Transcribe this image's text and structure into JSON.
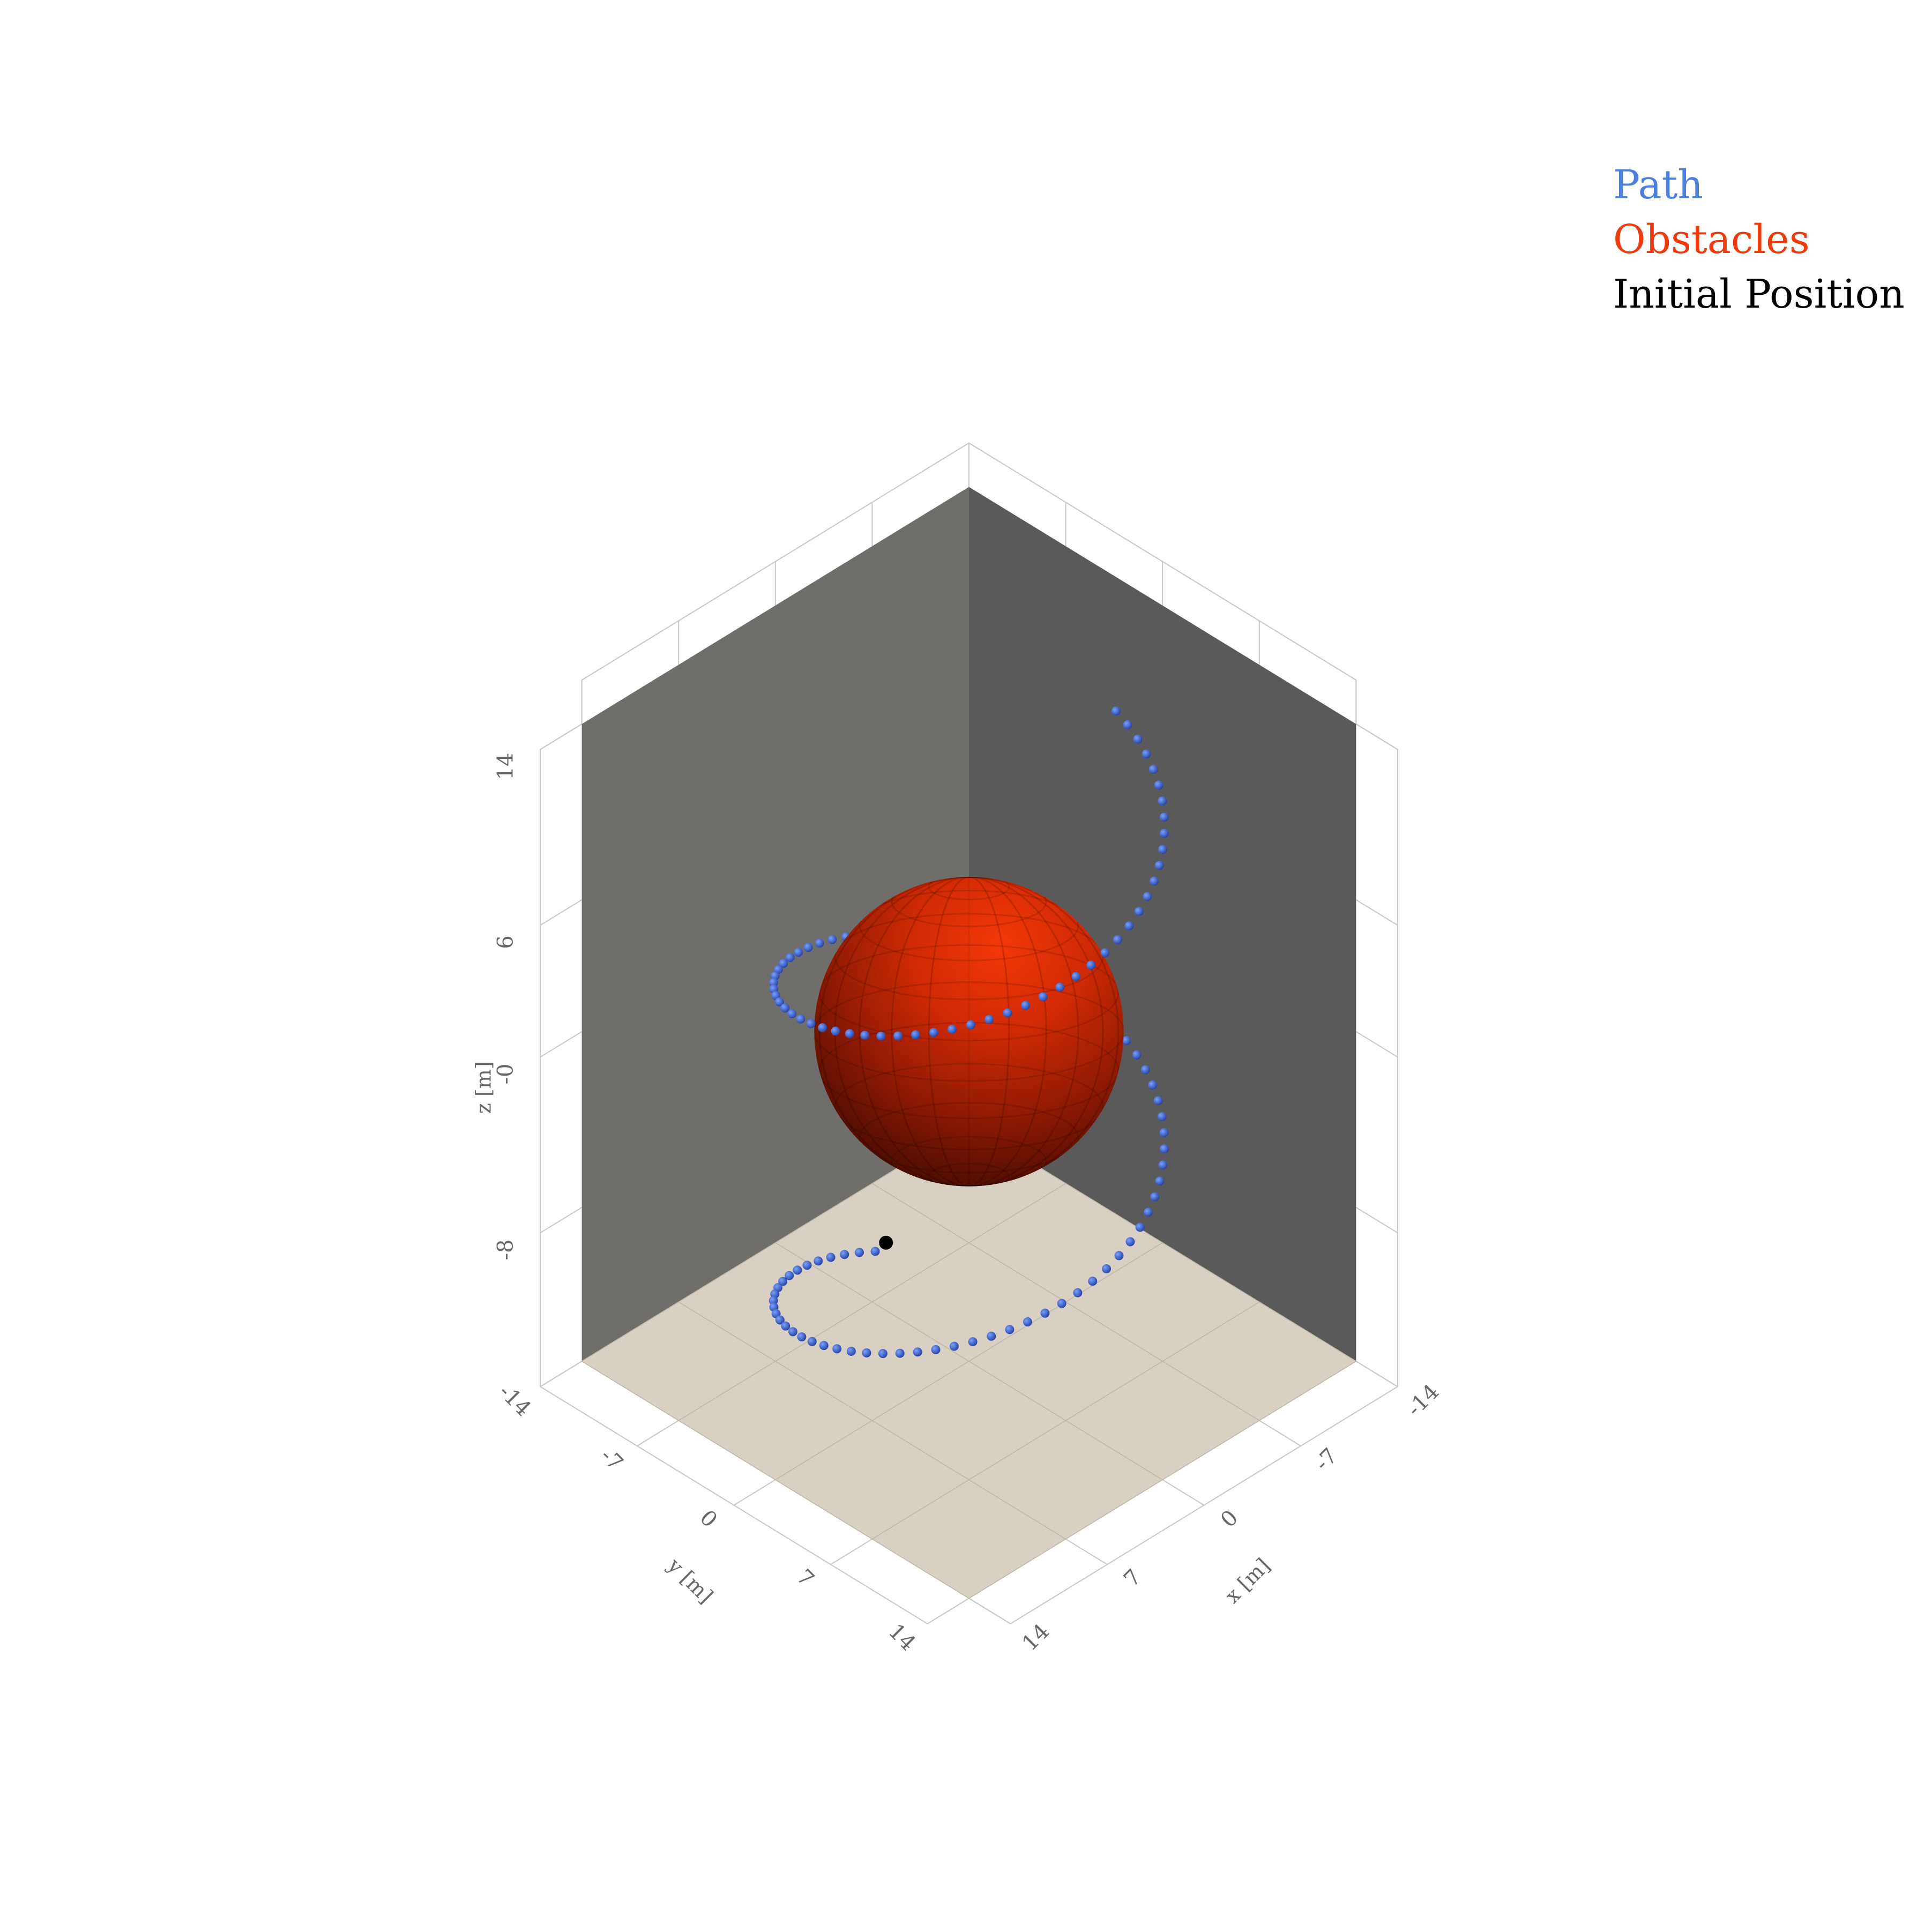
{
  "chart_data": {
    "type": "scatter",
    "dimensions": "3d",
    "axes": {
      "x": {
        "label": "x [m]",
        "range": [
          -14,
          14
        ],
        "ticks": [
          "-14",
          "-7",
          "0",
          "7",
          "14"
        ]
      },
      "y": {
        "label": "y [m]",
        "range": [
          -14,
          14
        ],
        "ticks": [
          "-14",
          "-7",
          "0",
          "7",
          "14"
        ]
      },
      "z": {
        "label": "z [m]",
        "range": [
          -15,
          14
        ],
        "ticks": [
          "14",
          "6",
          "-0",
          "-8"
        ]
      }
    },
    "grid": true,
    "legend": {
      "placement": "top-right",
      "entries": [
        {
          "name": "Path",
          "color": "#4a7fe0"
        },
        {
          "name": "Obstacles",
          "color": "#ee3a0c"
        },
        {
          "name": "Initial Position",
          "color": "#000000"
        }
      ]
    },
    "series": [
      {
        "name": "Path",
        "kind": "markers",
        "color": "#3b5fc9",
        "path": {
          "shape": "helix",
          "center": [
            0,
            0
          ],
          "radius": 10,
          "z_start": -15,
          "z_end": 11,
          "turns": 1.8,
          "points": 120
        }
      },
      {
        "name": "Obstacles",
        "kind": "sphere",
        "color": "#ee3a0c",
        "center": [
          0,
          0,
          0
        ],
        "radius": 8
      },
      {
        "name": "Initial Position",
        "kind": "marker",
        "color": "#000000",
        "point": [
          -4,
          -10,
          -15
        ]
      }
    ],
    "colors": {
      "back_wall_left": "#706e6b",
      "back_wall_right": "#5a5a5a",
      "floor": "#d8d1c3",
      "grid_line": "#c8c8c8"
    }
  }
}
